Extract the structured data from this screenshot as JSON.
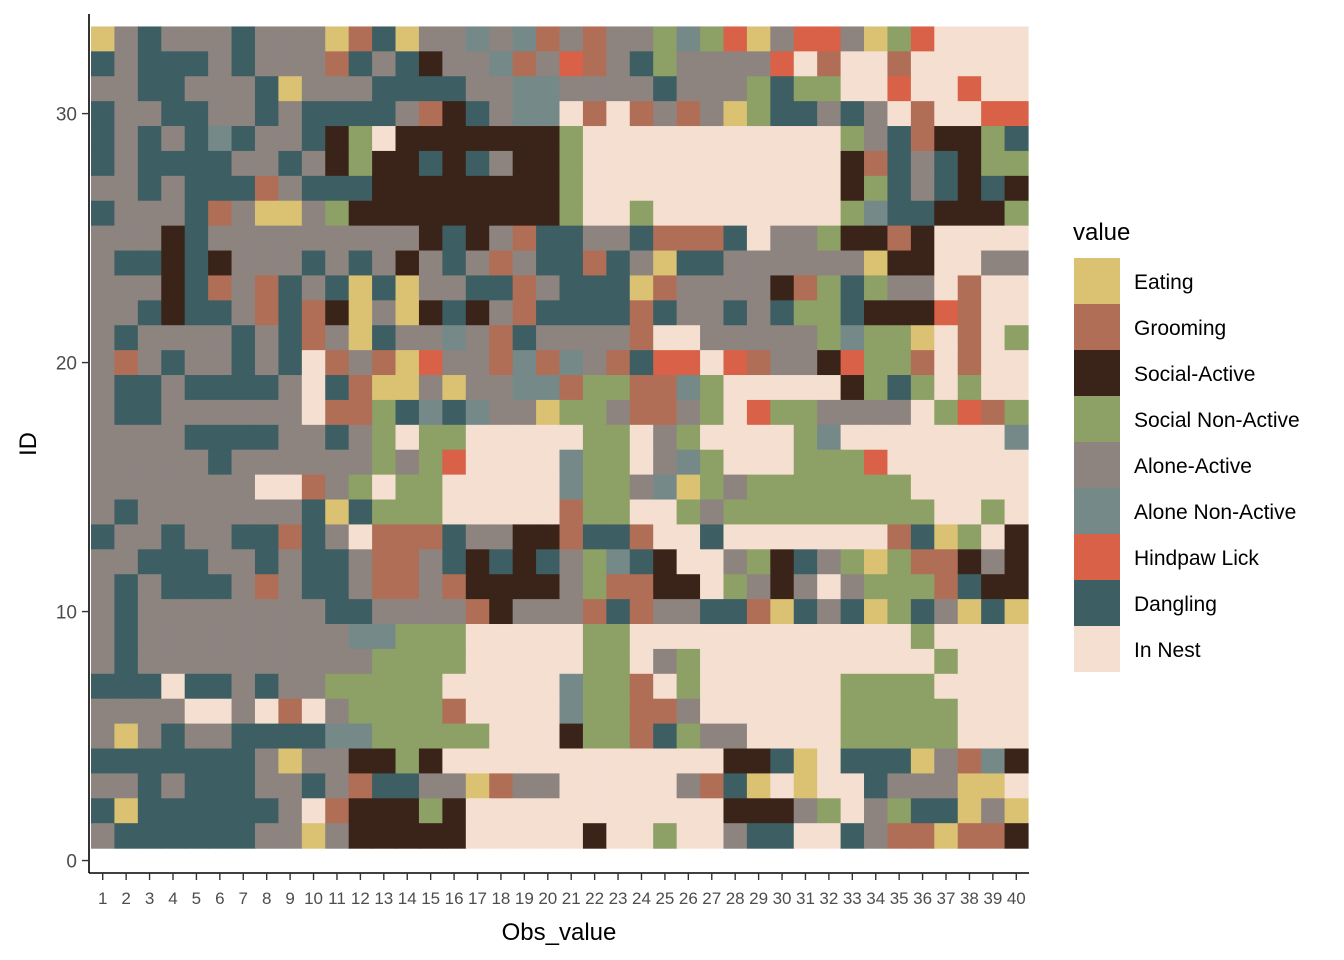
{
  "chart_data": {
    "type": "heatmap",
    "xlabel": "Obs_value",
    "ylabel": "ID",
    "x_ticks": [
      "1",
      "2",
      "3",
      "4",
      "5",
      "6",
      "7",
      "8",
      "9",
      "10",
      "11",
      "12",
      "13",
      "14",
      "15",
      "16",
      "17",
      "18",
      "19",
      "20",
      "21",
      "22",
      "23",
      "24",
      "25",
      "26",
      "27",
      "28",
      "29",
      "30",
      "31",
      "32",
      "33",
      "34",
      "35",
      "36",
      "37",
      "38",
      "39",
      "40"
    ],
    "y_ticks": [
      "0",
      "10",
      "20",
      "30"
    ],
    "ylim": [
      -0.5,
      34
    ],
    "grid": false,
    "legend": {
      "title": "value",
      "placement": "right",
      "entries": [
        {
          "key": "E",
          "label": "Eating",
          "color": "#DAC272"
        },
        {
          "key": "G",
          "label": "Grooming",
          "color": "#B06E57"
        },
        {
          "key": "S",
          "label": "Social-Active",
          "color": "#3A2419"
        },
        {
          "key": "N",
          "label": "Social Non-Active",
          "color": "#8DA065"
        },
        {
          "key": "A",
          "label": "Alone-Active",
          "color": "#8D8480"
        },
        {
          "key": "L",
          "label": "Alone Non-Active",
          "color": "#748988"
        },
        {
          "key": "H",
          "label": "Hindpaw Lick",
          "color": "#D86147"
        },
        {
          "key": "D",
          "label": "Dangling",
          "color": "#3D5F63"
        },
        {
          "key": "I",
          "label": "In Nest",
          "color": "#F4DFD1"
        }
      ]
    },
    "rows_top_to_bottom": [
      "EADAAADAAAEGDEAALALGAGAANLNHEAHHAENHIIII",
      "DADDDADAAAGDADSAALGAHGADNAAAAHIGIIGIIIII",
      "AADDAAADEAAADDDDAALLAAAADAAANDNNIIHIIHII",
      "DAADDAADADDDDAGSDALLIGIGAGAENDDADAIGIIHHH",
      "DADADLDAADSNISSSSSSSNIIIIIIIIIIINADGSSND",
      "DADDDDAADASNSSDSDASSNIIIIIIIIIIISGDADSNN",
      "AADADDDGADDDSSSSSSSSNIIIIIIIIIIISNDADSDS",
      "DAAADGAEEANSSSSSSSSSNIINIIIIIIIINLDDSSSN",
      "AAASDAAAAAAAAASDSAGDDAADGGGDIAANSSGSIIII",
      "ADDSDSAAADADASADAGADDGDAEDDAAAAAAESSIIAA",
      "AAASDGAGDADEDEAADDGADDDEGAAAASGNDNAAIGII",
      "AADSDDAGDGSEAESDSAGDDDDGDAADADNNDSSSHGII",
      "ADAAAADADGAEDAALAGDAAAAGIIAAAAANLNNEIGIN",
      "AGADAADADIGAGEHAAGLGLAGDHHIHGAASHNNGIGII",
      "ADDADDDDAIDGEEAEAALLGNNGGLNIIIIISNDNINII",
      "ADDAAAAAAIGGNDLDLAAENNAGGANIHNNAAAAINHGN",
      "AAAADDDDAADANINNIIIIINNIANIIIINLIIIIIIIL",
      "AAAAADAAAAAANANHIIIILNNIALNIIINNNHIIIIII",
      "AAAAAAAIIGANINNIIIIILNNALENANNNNNNNIIIII",
      "ADAAAAAAADEDNNNIIIIIGNNIINANNNNNNNNNIINI",
      "DAADAADDGDAIGGGDAASSGDDGIIDIIIIIIIGDENIS",
      "AADDDAADADDAGGADSDSDANLDSIIANSDANENGGSAS",
      "ADADDDAGADDAGGAGSSSSANGGSSINASAIANNNGDSS",
      "ADAAAAAAAADDAAAAGSAAAGDGAADDGEDADENDAEDE",
      "ADAAAAAAAAALLNNNIIIIINNIIIIIIIIIIIINIIII",
      "ADAAAAAAAAAANNNNIIIIINNIANIIIIIIIIIINIII",
      "DDDIDDADAANNNNNIIIIILNNGINIIIIIINNNNIIII",
      "AAAAIIAIGIANNNNGIIIILNNGGAIIIIIINNNNNIII",
      "AEADAADDDDLLNNNNNIIISNNGDNAAIIIINNNNNIII",
      "DDDDDDDAEAASSNSIIIIIIIIIIIISSDEIDDDEAGLSI",
      "AADADDDAADAGDDAAEGAAIIIIIAGDEIEIIDAAAEEIESI",
      "DEDDDDDDAIGSSSNSIIIIIIIIIIISSSANIANDDEAEEI",
      "ADDDDDDAAEASSSSSIIIIISIINIIADDIIDAGGEGGSS"
    ]
  }
}
